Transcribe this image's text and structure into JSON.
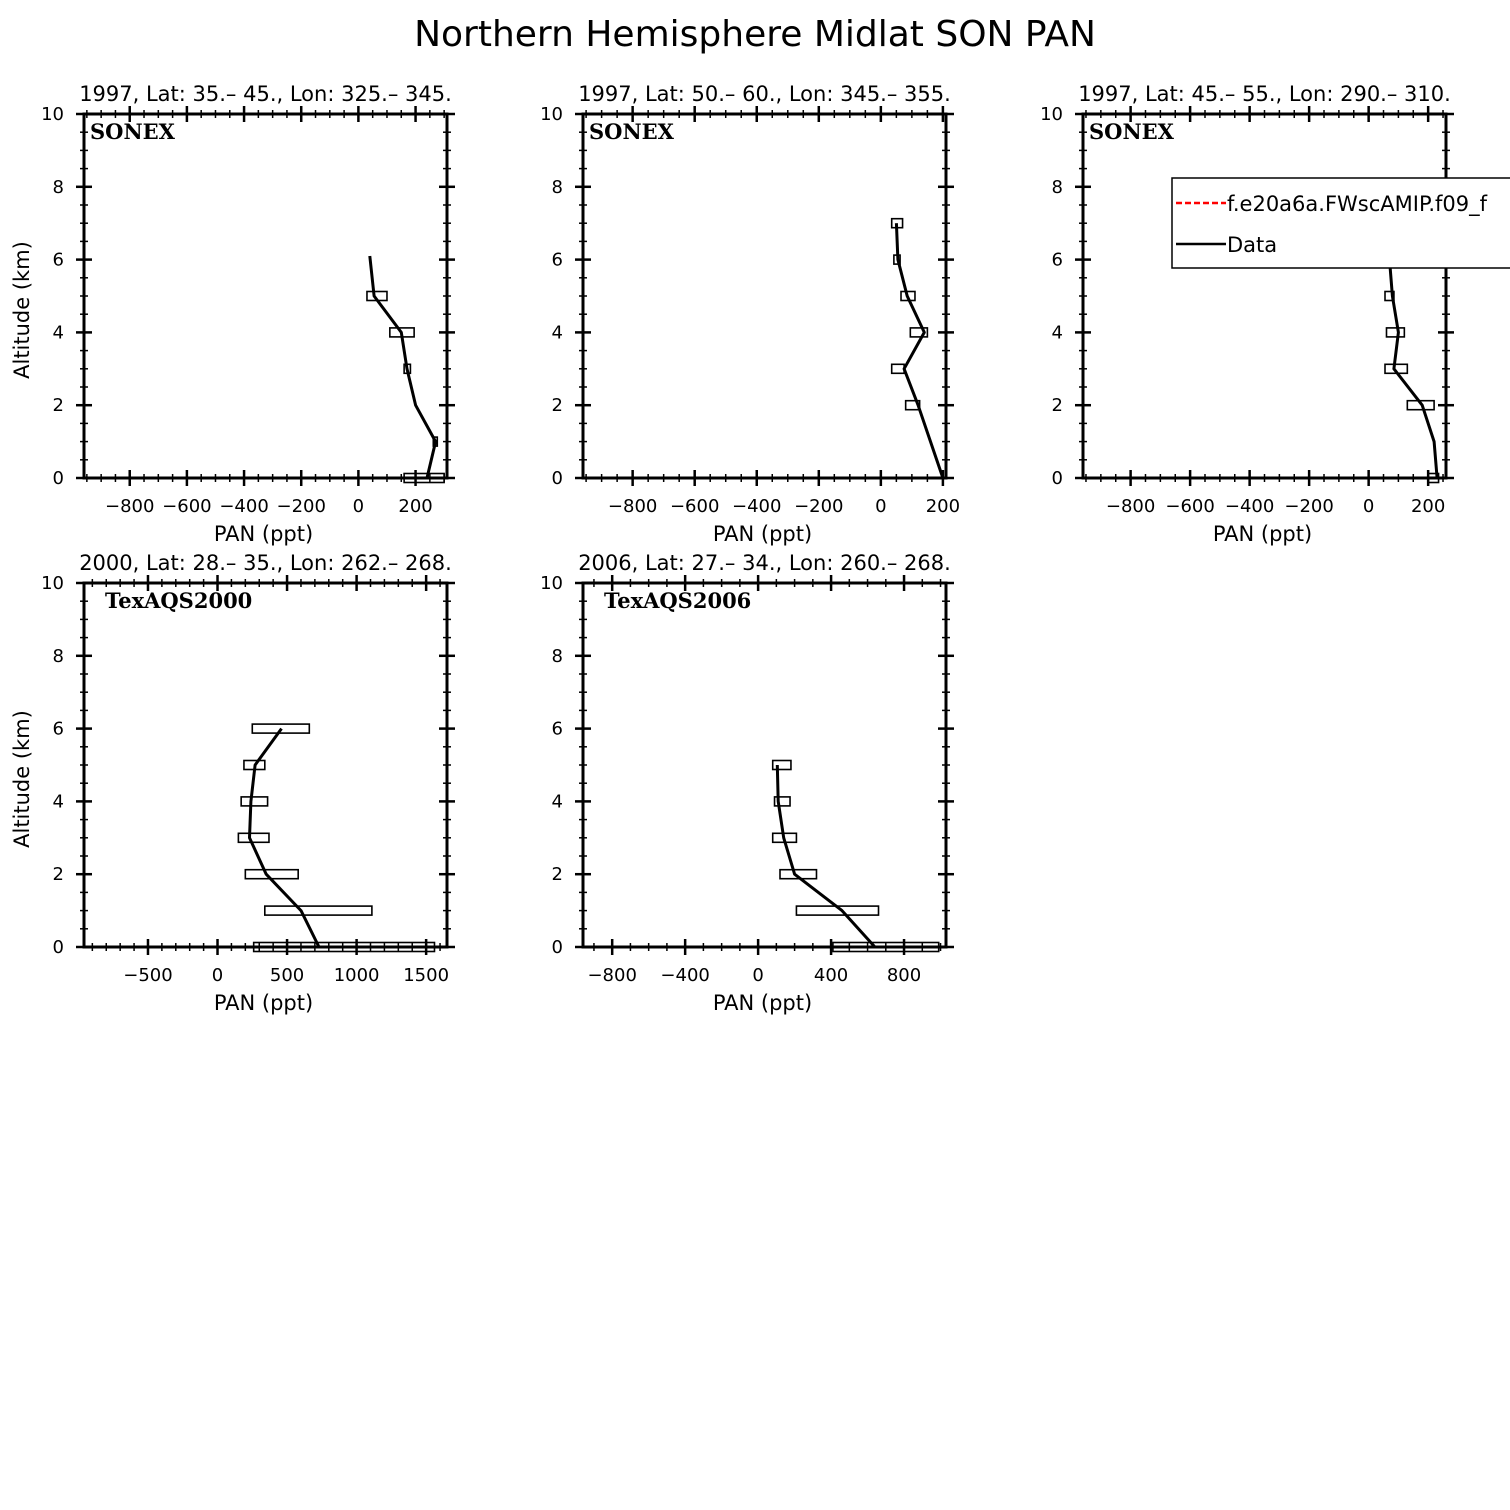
{
  "title": "Northern Hemisphere Midlat SON PAN",
  "legend": {
    "placement": "upper-right of third panel",
    "entries": [
      {
        "label": "f.e20a6a.FWscAMIP.f09_f",
        "color": "#ff0000",
        "dash": true
      },
      {
        "label": "Data",
        "color": "#000000",
        "dash": false
      }
    ]
  },
  "chart_data": [
    {
      "type": "line",
      "title": "1997, Lat: 35.– 45., Lon: 325.– 345.",
      "campaign": "SONEX",
      "xlabel": "PAN (ppt)",
      "ylabel": "Altitude (km)",
      "xlim": [
        -960,
        310
      ],
      "ylim": [
        0,
        10
      ],
      "xticks": [
        -800,
        -600,
        -400,
        -200,
        0,
        200
      ],
      "xtick_labels": [
        "−800",
        "−600",
        "−400",
        "−200",
        "0",
        "200"
      ],
      "xminor": 50,
      "yticks": [
        0,
        2,
        4,
        6,
        8,
        10
      ],
      "ylabels_shown": true,
      "series": [
        {
          "name": "Data",
          "color": "#000000",
          "x": [
            240,
            270,
            200,
            170,
            150,
            55,
            40
          ],
          "y": [
            0,
            1,
            2,
            3,
            4,
            5,
            6.1
          ]
        }
      ],
      "boxes": [
        {
          "y": 0,
          "lo": 160,
          "hi": 300
        },
        {
          "y": 1,
          "lo": 262,
          "hi": 276
        },
        {
          "y": 3,
          "lo": 160,
          "hi": 182
        },
        {
          "y": 4,
          "lo": 110,
          "hi": 195
        },
        {
          "y": 5,
          "lo": 30,
          "hi": 100
        }
      ]
    },
    {
      "type": "line",
      "title": "1997, Lat: 50.– 60., Lon: 345.– 355.",
      "campaign": "SONEX",
      "xlabel": "PAN (ppt)",
      "ylabel": "",
      "xlim": [
        -960,
        210
      ],
      "ylim": [
        0,
        10
      ],
      "xticks": [
        -800,
        -600,
        -400,
        -200,
        0,
        200
      ],
      "xtick_labels": [
        "−800",
        "−600",
        "−400",
        "−200",
        "0",
        "200"
      ],
      "xminor": 50,
      "yticks": [
        0,
        2,
        4,
        6,
        8,
        10
      ],
      "ylabels_shown": true,
      "series": [
        {
          "name": "Data",
          "color": "#000000",
          "x": [
            200,
            160,
            120,
            75,
            140,
            85,
            55,
            50
          ],
          "y": [
            0,
            1,
            2,
            3,
            4,
            5,
            6,
            7
          ]
        }
      ],
      "boxes": [
        {
          "y": 2,
          "lo": 80,
          "hi": 125
        },
        {
          "y": 3,
          "lo": 35,
          "hi": 75
        },
        {
          "y": 4,
          "lo": 95,
          "hi": 150
        },
        {
          "y": 5,
          "lo": 65,
          "hi": 110
        },
        {
          "y": 6,
          "lo": 42,
          "hi": 62
        },
        {
          "y": 7,
          "lo": 35,
          "hi": 70
        }
      ]
    },
    {
      "type": "line",
      "title": "1997, Lat: 45.– 55., Lon: 290.– 310.",
      "campaign": "SONEX",
      "xlabel": "PAN (ppt)",
      "ylabel": "",
      "xlim": [
        -960,
        260
      ],
      "ylim": [
        0,
        10
      ],
      "xticks": [
        -800,
        -600,
        -400,
        -200,
        0,
        200
      ],
      "xtick_labels": [
        "−800",
        "−600",
        "−400",
        "−200",
        "0",
        "200"
      ],
      "xminor": 50,
      "yticks": [
        0,
        2,
        4,
        6,
        8,
        10
      ],
      "ylabels_shown": true,
      "series": [
        {
          "name": "Data",
          "color": "#000000",
          "x": [
            230,
            220,
            180,
            85,
            100,
            80,
            70,
            65,
            70
          ],
          "y": [
            0,
            1,
            2,
            3,
            4,
            5,
            6,
            7,
            8
          ]
        }
      ],
      "boxes": [
        {
          "y": 0,
          "lo": 200,
          "hi": 235
        },
        {
          "y": 2,
          "lo": 130,
          "hi": 220
        },
        {
          "y": 3,
          "lo": 55,
          "hi": 130
        },
        {
          "y": 4,
          "lo": 60,
          "hi": 120
        },
        {
          "y": 5,
          "lo": 55,
          "hi": 85
        },
        {
          "y": 6,
          "lo": 45,
          "hi": 100
        },
        {
          "y": 7,
          "lo": 55,
          "hi": 80
        },
        {
          "y": 8,
          "lo": 55,
          "hi": 80
        }
      ]
    },
    {
      "type": "line",
      "title": "2000, Lat: 28.– 35., Lon: 262.– 268.",
      "campaign": "TexAQS2000",
      "xlabel": "PAN (ppt)",
      "ylabel": "Altitude (km)",
      "xlim": [
        -960,
        1650
      ],
      "ylim": [
        0,
        10
      ],
      "xticks": [
        -500,
        0,
        500,
        1000,
        1500
      ],
      "xtick_labels": [
        "−500",
        "0",
        "500",
        "1000",
        "1500"
      ],
      "xminor": 100,
      "yticks": [
        0,
        2,
        4,
        6,
        8,
        10
      ],
      "ylabels_shown": true,
      "series": [
        {
          "name": "Data",
          "color": "#000000",
          "x": [
            730,
            600,
            350,
            230,
            240,
            270,
            460
          ],
          "y": [
            0,
            1,
            2,
            3,
            4,
            5,
            6
          ]
        }
      ],
      "boxes": [
        {
          "y": 0,
          "lo": 260,
          "hi": 1560
        },
        {
          "y": 1,
          "lo": 340,
          "hi": 1110
        },
        {
          "y": 2,
          "lo": 200,
          "hi": 580
        },
        {
          "y": 3,
          "lo": 150,
          "hi": 370
        },
        {
          "y": 4,
          "lo": 170,
          "hi": 360
        },
        {
          "y": 5,
          "lo": 190,
          "hi": 340
        },
        {
          "y": 6,
          "lo": 250,
          "hi": 660
        }
      ]
    },
    {
      "type": "line",
      "title": "2006, Lat: 27.– 34., Lon: 260.– 268.",
      "campaign": "TexAQS2006",
      "xlabel": "PAN (ppt)",
      "ylabel": "",
      "xlim": [
        -960,
        1030
      ],
      "ylim": [
        0,
        10
      ],
      "xticks": [
        -800,
        -400,
        0,
        400,
        800
      ],
      "xtick_labels": [
        "−800",
        "−400",
        "0",
        "400",
        "800"
      ],
      "xminor": 100,
      "yticks": [
        0,
        2,
        4,
        6,
        8,
        10
      ],
      "ylabels_shown": true,
      "series": [
        {
          "name": "Data",
          "color": "#000000",
          "x": [
            640,
            460,
            200,
            140,
            110,
            105
          ],
          "y": [
            0,
            1,
            2,
            3,
            4,
            5
          ]
        }
      ],
      "boxes": [
        {
          "y": 0,
          "lo": 410,
          "hi": 990
        },
        {
          "y": 1,
          "lo": 210,
          "hi": 660
        },
        {
          "y": 2,
          "lo": 120,
          "hi": 320
        },
        {
          "y": 3,
          "lo": 80,
          "hi": 210
        },
        {
          "y": 4,
          "lo": 90,
          "hi": 175
        },
        {
          "y": 5,
          "lo": 80,
          "hi": 180
        }
      ]
    }
  ]
}
